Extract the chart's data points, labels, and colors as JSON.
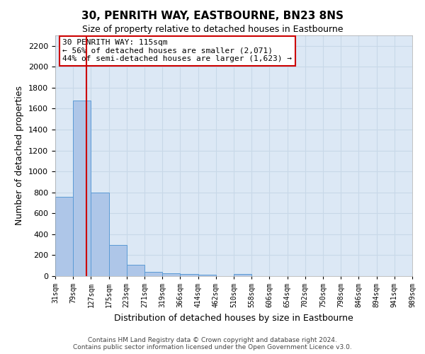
{
  "title": "30, PENRITH WAY, EASTBOURNE, BN23 8NS",
  "subtitle": "Size of property relative to detached houses in Eastbourne",
  "xlabel": "Distribution of detached houses by size in Eastbourne",
  "ylabel": "Number of detached properties",
  "bin_edges": [
    31,
    79,
    127,
    175,
    223,
    271,
    319,
    366,
    414,
    462,
    510,
    558,
    606,
    654,
    702,
    750,
    798,
    846,
    894,
    941,
    989
  ],
  "bin_labels": [
    "31sqm",
    "79sqm",
    "127sqm",
    "175sqm",
    "223sqm",
    "271sqm",
    "319sqm",
    "366sqm",
    "414sqm",
    "462sqm",
    "510sqm",
    "558sqm",
    "606sqm",
    "654sqm",
    "702sqm",
    "750sqm",
    "798sqm",
    "846sqm",
    "894sqm",
    "941sqm",
    "989sqm"
  ],
  "values": [
    760,
    1680,
    800,
    300,
    110,
    38,
    25,
    20,
    15,
    0,
    20,
    0,
    0,
    0,
    0,
    0,
    0,
    0,
    0,
    0
  ],
  "bar_color": "#aec6e8",
  "bar_edge_color": "#5b9bd5",
  "prop_size": 115,
  "vline_color": "#cc0000",
  "annotation_text": "30 PENRITH WAY: 115sqm\n← 56% of detached houses are smaller (2,071)\n44% of semi-detached houses are larger (1,623) →",
  "box_edge_color": "#cc0000",
  "ylim": [
    0,
    2300
  ],
  "yticks": [
    0,
    200,
    400,
    600,
    800,
    1000,
    1200,
    1400,
    1600,
    1800,
    2000,
    2200
  ],
  "grid_color": "#c8d8e8",
  "background_color": "#dce8f5",
  "footer_line1": "Contains HM Land Registry data © Crown copyright and database right 2024.",
  "footer_line2": "Contains public sector information licensed under the Open Government Licence v3.0."
}
